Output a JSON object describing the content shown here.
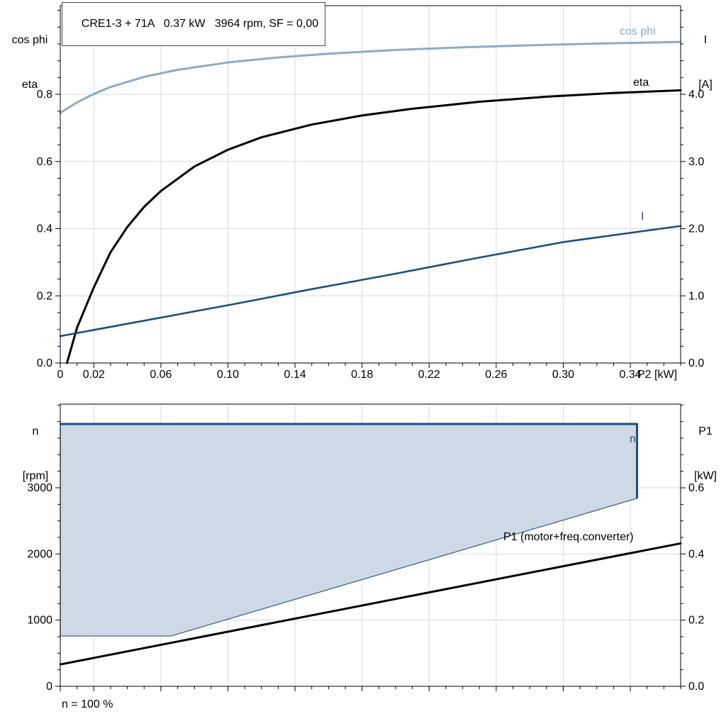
{
  "page": {
    "background": "#ffffff"
  },
  "labels": {
    "title": "CRE1-3 + 71A   0.37 kW   3964 rpm, SF = 0,00",
    "top_left_axis_line1": "cos phi",
    "top_left_axis_line2": "eta",
    "top_right_axis_line1": "I",
    "top_right_axis_line2": "[A]",
    "x_axis_label": "P2 [kW]",
    "bottom_left_axis_line1": "n",
    "bottom_left_axis_line2": "[rpm]",
    "bottom_right_axis_line1": "P1",
    "bottom_right_axis_line2": "[kW]",
    "cos_phi_curve": "cos phi",
    "eta_curve": "eta",
    "current_curve": "I",
    "speed_curve": "n",
    "p1_curve": "P1 (motor+freq.converter)",
    "footer": "n = 100 %"
  },
  "colors": {
    "cos_phi": "#8dabc4",
    "eta": "#000000",
    "current": "#1d4f7f",
    "envelope_fill": "#cdd9e5",
    "envelope_stroke": "#2b5e8e",
    "p1": "#000000",
    "grid": "#d9d9d9",
    "axis": "#000000"
  },
  "chart_data": [
    {
      "name": "motor-performance",
      "type": "line",
      "title": "CRE1-3 + 71A   0.37 kW   3964 rpm, SF = 0,00",
      "xlabel": "P2 [kW]",
      "ylabel_left": "cos phi / eta",
      "ylabel_right": "I [A]",
      "xlim": [
        0,
        0.37
      ],
      "ylim_left": [
        0,
        1.064
      ],
      "ylim_right": [
        0,
        5.32
      ],
      "x_major_ticks": [
        0,
        0.02,
        0.06,
        0.1,
        0.14,
        0.18,
        0.22,
        0.26,
        0.3,
        0.34
      ],
      "x_tick_labels": [
        "0",
        "0.02",
        "0.06",
        "0.10",
        "0.14",
        "0.18",
        "0.22",
        "0.26",
        "0.30",
        "0.34"
      ],
      "x_minor_step": 0.01,
      "y_left_ticks": [
        0,
        0.2,
        0.4,
        0.6,
        0.8
      ],
      "y_left_tick_labels": [
        "0.0",
        "0.2",
        "0.4",
        "0.6",
        "0.8"
      ],
      "y_left_minor_step": 0.05,
      "y_right_ticks": [
        0,
        1,
        2,
        3,
        4
      ],
      "y_right_tick_labels": [
        "0.0",
        "1.0",
        "2.0",
        "3.0",
        "4.0"
      ],
      "y_right_minor_step": 0.25,
      "grid": true,
      "series": [
        {
          "name": "cos phi",
          "axis": "left",
          "color": "#8dabc4",
          "width": 3,
          "x": [
            0,
            0.01,
            0.02,
            0.03,
            0.05,
            0.07,
            0.1,
            0.13,
            0.16,
            0.2,
            0.24,
            0.28,
            0.32,
            0.37
          ],
          "y": [
            0.745,
            0.776,
            0.801,
            0.822,
            0.852,
            0.873,
            0.895,
            0.91,
            0.921,
            0.932,
            0.94,
            0.946,
            0.951,
            0.956
          ]
        },
        {
          "name": "eta",
          "axis": "left",
          "color": "#000000",
          "width": 3,
          "x": [
            0.004,
            0.01,
            0.02,
            0.03,
            0.04,
            0.05,
            0.06,
            0.08,
            0.1,
            0.12,
            0.15,
            0.18,
            0.21,
            0.25,
            0.29,
            0.33,
            0.37
          ],
          "y": [
            0,
            0.105,
            0.225,
            0.33,
            0.405,
            0.465,
            0.512,
            0.585,
            0.635,
            0.672,
            0.71,
            0.737,
            0.757,
            0.778,
            0.793,
            0.804,
            0.812
          ]
        },
        {
          "name": "I",
          "axis": "right",
          "color": "#1d4f7f",
          "width": 2.6,
          "x": [
            0,
            0.05,
            0.1,
            0.15,
            0.2,
            0.25,
            0.3,
            0.37
          ],
          "y": [
            0.4,
            0.63,
            0.86,
            1.1,
            1.33,
            1.57,
            1.8,
            2.04
          ]
        }
      ]
    },
    {
      "name": "speed-power",
      "type": "line",
      "xlabel": "",
      "ylabel_left": "n [rpm]",
      "ylabel_right": "P1 [kW]",
      "xlim": [
        0,
        0.37
      ],
      "ylim_left": [
        0,
        4264
      ],
      "ylim_right": [
        0,
        0.853
      ],
      "x_major_ticks": [
        0,
        0.02,
        0.06,
        0.1,
        0.14,
        0.18,
        0.22,
        0.26,
        0.3,
        0.34
      ],
      "x_tick_labels": [
        "",
        "",
        "",
        "",
        "",
        "",
        "",
        "",
        "",
        ""
      ],
      "x_minor_step": 0.01,
      "y_left_ticks": [
        0,
        1000,
        2000,
        3000
      ],
      "y_left_tick_labels": [
        "0",
        "1000",
        "2000",
        "3000"
      ],
      "y_left_minor_step": 250,
      "y_right_ticks": [
        0,
        0.2,
        0.4,
        0.6
      ],
      "y_right_tick_labels": [
        "0.0",
        "0.2",
        "0.4",
        "0.6"
      ],
      "y_right_minor_step": 0.05,
      "grid": true,
      "envelope": {
        "name": "n operating range",
        "n_max_rpm": 3964,
        "n_min_rpm": 760,
        "x": [
          0,
          0.344,
          0.344,
          0.066,
          0
        ],
        "n": [
          3964,
          3964,
          2840,
          760,
          760
        ],
        "top_line_x": [
          0,
          0.344,
          0.344
        ],
        "top_line_n": [
          3964,
          3964,
          2840
        ]
      },
      "series": [
        {
          "name": "P1 (motor+freq.converter)",
          "axis": "right",
          "color": "#000000",
          "width": 3,
          "x": [
            0,
            0.1,
            0.2,
            0.3,
            0.37
          ],
          "y": [
            0.066,
            0.165,
            0.264,
            0.363,
            0.432
          ]
        }
      ]
    }
  ]
}
